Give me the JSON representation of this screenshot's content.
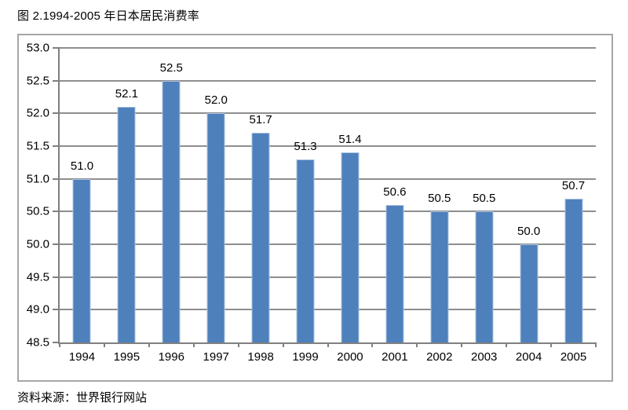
{
  "page": {
    "title": "图 2.1994-2005 年日本居民消费率",
    "source_note": "资料来源：世界银行网站"
  },
  "chart_data": {
    "type": "bar",
    "title": "图 2.1994-2005 年日本居民消费率",
    "source_note": "资料来源：世界银行网站",
    "categories": [
      "1994",
      "1995",
      "1996",
      "1997",
      "1998",
      "1999",
      "2000",
      "2001",
      "2002",
      "2003",
      "2004",
      "2005"
    ],
    "values": [
      51.0,
      52.1,
      52.5,
      52.0,
      51.7,
      51.3,
      51.4,
      50.6,
      50.5,
      50.5,
      50.0,
      50.7
    ],
    "data_labels": [
      "51.0",
      "52.1",
      "52.5",
      "52.0",
      "51.7",
      "51.3",
      "51.4",
      "50.6",
      "50.5",
      "50.5",
      "50.0",
      "50.7"
    ],
    "xlabel": "",
    "ylabel": "",
    "ylim": [
      48.5,
      53.0
    ],
    "ytick_step": 0.5,
    "ytick_labels": [
      "48.5",
      "49.0",
      "49.5",
      "50.0",
      "50.5",
      "51.0",
      "51.5",
      "52.0",
      "52.5",
      "53.0"
    ],
    "grid": true,
    "legend_position": "none",
    "colors": {
      "bar_fill": "#4e80bc",
      "bar_edge": "#abc3e2",
      "gridline": "#8e8e8e",
      "axis": "#808080",
      "frame_border": "#a6a6a6",
      "text": "#000000",
      "background": "#ffffff"
    }
  }
}
